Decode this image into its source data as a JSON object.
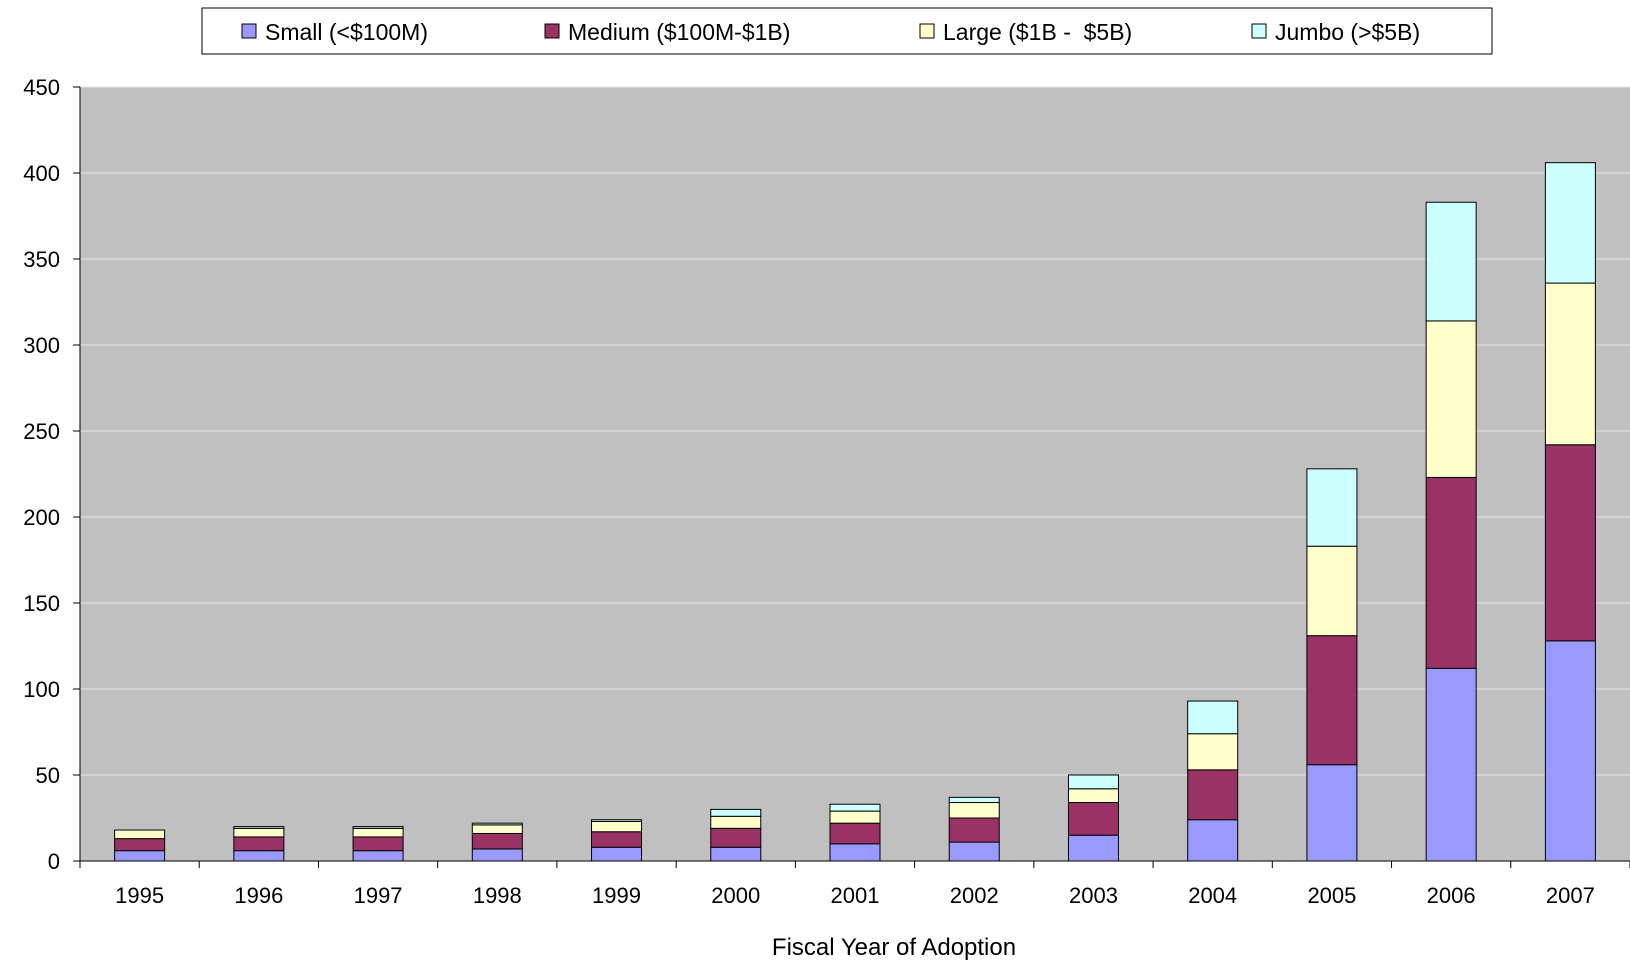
{
  "chart_data": {
    "type": "bar",
    "stacked": true,
    "title": "",
    "xlabel": "Fiscal Year of Adoption",
    "ylabel": "",
    "ylim": [
      0,
      450
    ],
    "yticks": [
      "0",
      "50",
      "100",
      "150",
      "200",
      "250",
      "300",
      "350",
      "400",
      "450"
    ],
    "categories": [
      "1995",
      "1996",
      "1997",
      "1998",
      "1999",
      "2000",
      "2001",
      "2002",
      "2003",
      "2004",
      "2005",
      "2006",
      "2007"
    ],
    "series": [
      {
        "name": "Small (<$100M)",
        "color": "#9999ff",
        "values": [
          6,
          6,
          6,
          7,
          8,
          8,
          10,
          11,
          15,
          24,
          56,
          112,
          128
        ]
      },
      {
        "name": "Medium ($100M-$1B)",
        "color": "#993366",
        "values": [
          7,
          8,
          8,
          9,
          9,
          11,
          12,
          14,
          19,
          29,
          75,
          111,
          114
        ]
      },
      {
        "name": "Large ($1B -  $5B)",
        "color": "#ffffcc",
        "values": [
          5,
          5,
          5,
          5,
          6,
          7,
          7,
          9,
          8,
          21,
          52,
          91,
          94
        ]
      },
      {
        "name": "Jumbo (>$5B)",
        "color": "#ccffff",
        "values": [
          0,
          1,
          1,
          1,
          1,
          4,
          4,
          3,
          8,
          19,
          45,
          69,
          70
        ]
      }
    ],
    "grid": true,
    "legend_position": "top",
    "plot_background": "#c0c0c0"
  }
}
